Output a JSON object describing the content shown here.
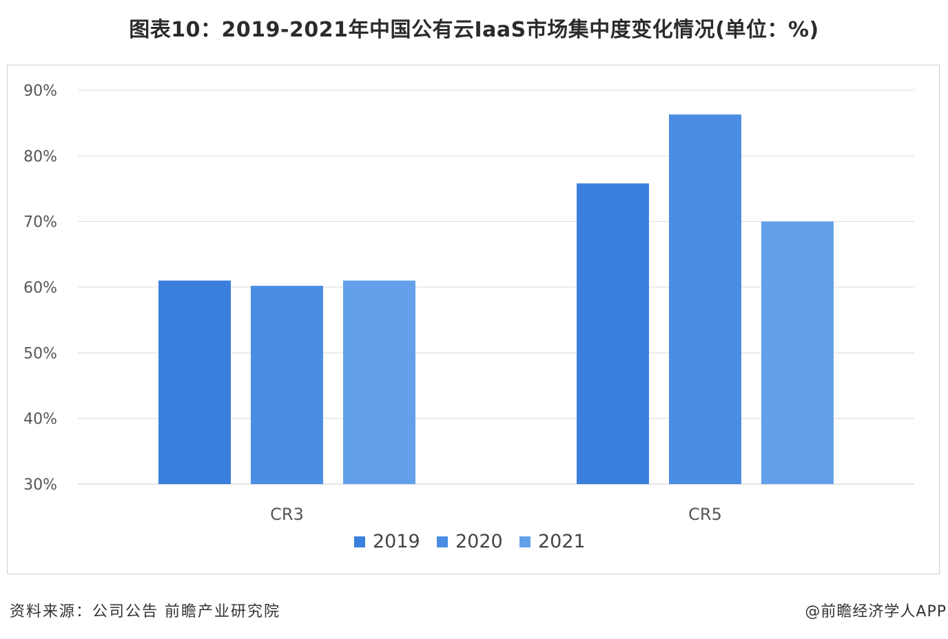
{
  "title": "图表10：2019-2021年中国公有云IaaS市场集中度变化情况(单位：%)",
  "footer": {
    "source": "资料来源：公司公告 前瞻产业研究院",
    "credit": "@前瞻经济学人APP"
  },
  "watermark": "前瞻产业研究院",
  "chart_data": {
    "type": "bar",
    "categories": [
      "CR3",
      "CR5"
    ],
    "series": [
      {
        "name": "2019",
        "values": [
          61,
          75.8
        ],
        "color": "#3a7fdd"
      },
      {
        "name": "2020",
        "values": [
          60.2,
          86.3
        ],
        "color": "#4a8de3"
      },
      {
        "name": "2021",
        "values": [
          61,
          70
        ],
        "color": "#62a1ea"
      }
    ],
    "yticks": [
      "30%",
      "40%",
      "50%",
      "60%",
      "70%",
      "80%",
      "90%"
    ],
    "ylim": [
      30,
      90
    ],
    "grid": true,
    "legend": "bottom"
  }
}
